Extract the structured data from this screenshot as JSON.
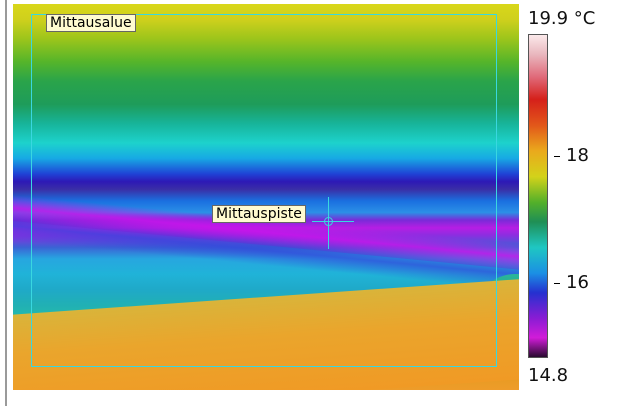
{
  "thermal_image": {
    "area_label": "Mittausalue",
    "spot_label": "Mittauspiste"
  },
  "scale": {
    "unit_max": "19.9 °C",
    "min": "14.8",
    "ticks": [
      "18",
      "16"
    ]
  },
  "colors": {
    "marker": "#39d7e0",
    "label_bg": "#fffbd0"
  }
}
